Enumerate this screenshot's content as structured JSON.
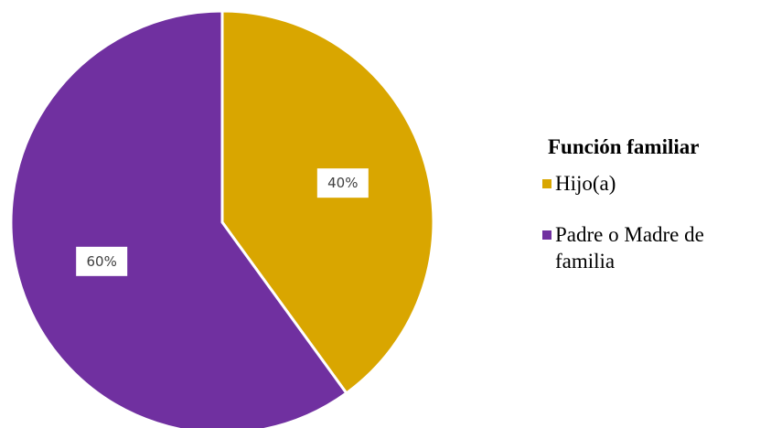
{
  "chart_data": {
    "type": "pie",
    "legend_title": "Función familiar",
    "legend_position": "right",
    "slices": [
      {
        "label": "Hijo(a)",
        "value": 40,
        "value_label": "40%",
        "color": "#D9A600"
      },
      {
        "label": "Padre o Madre de familia",
        "value": 60,
        "value_label": "60%",
        "color": "#7030A0"
      }
    ]
  }
}
